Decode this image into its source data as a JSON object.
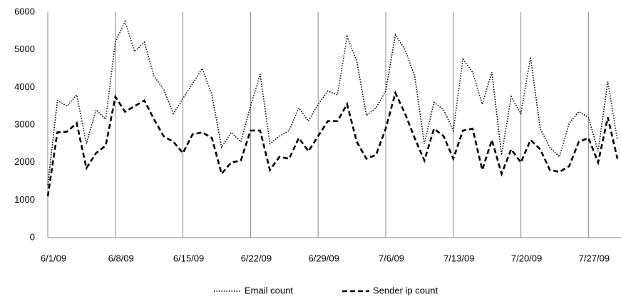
{
  "chart_data": {
    "type": "line",
    "categories": [
      "6/1/09",
      null,
      null,
      null,
      null,
      null,
      null,
      "6/8/09",
      null,
      null,
      null,
      null,
      null,
      null,
      "6/15/09",
      null,
      null,
      null,
      null,
      null,
      null,
      "6/22/09",
      null,
      null,
      null,
      null,
      null,
      null,
      "6/29/09",
      null,
      null,
      null,
      null,
      null,
      null,
      "7/6/09",
      null,
      null,
      null,
      null,
      null,
      null,
      "7/13/09",
      null,
      null,
      null,
      null,
      null,
      null,
      "7/20/09",
      null,
      null,
      null,
      null,
      null,
      null,
      "7/27/09",
      null,
      null,
      null
    ],
    "series": [
      {
        "name": "Email count",
        "color": "#000000",
        "dash": "dotted",
        "values": [
          1400,
          3650,
          3500,
          3800,
          2500,
          3400,
          3150,
          5200,
          5750,
          4950,
          5200,
          4300,
          3950,
          3300,
          3700,
          4100,
          4500,
          3800,
          2400,
          2800,
          2550,
          3500,
          4350,
          2500,
          2700,
          2850,
          3450,
          3100,
          3550,
          3900,
          3800,
          5350,
          4700,
          3250,
          3450,
          3900,
          5400,
          5000,
          4300,
          2500,
          3600,
          3400,
          2850,
          4750,
          4400,
          3550,
          4400,
          2200,
          3750,
          3300,
          4800,
          2900,
          2400,
          2150,
          3050,
          3350,
          3200,
          2300,
          4150,
          2600
        ]
      },
      {
        "name": "Sender ip count",
        "color": "#000000",
        "dash": "dashed",
        "values": [
          1100,
          2800,
          2820,
          3050,
          1850,
          2250,
          2450,
          3750,
          3350,
          3500,
          3650,
          3150,
          2700,
          2550,
          2250,
          2750,
          2800,
          2650,
          1700,
          2000,
          2050,
          2850,
          2850,
          1800,
          2150,
          2100,
          2650,
          2300,
          2700,
          3100,
          3100,
          3550,
          2550,
          2100,
          2200,
          2900,
          3850,
          3300,
          2650,
          2050,
          2900,
          2700,
          2100,
          2850,
          2900,
          1800,
          2600,
          1700,
          2350,
          2000,
          2600,
          2350,
          1800,
          1750,
          1900,
          2550,
          2650,
          2000,
          3200,
          2100
        ]
      }
    ],
    "ylim": [
      0,
      6000
    ],
    "yticks": [
      0,
      1000,
      2000,
      3000,
      4000,
      5000,
      6000
    ],
    "grid": "x",
    "legend": "bottom"
  }
}
